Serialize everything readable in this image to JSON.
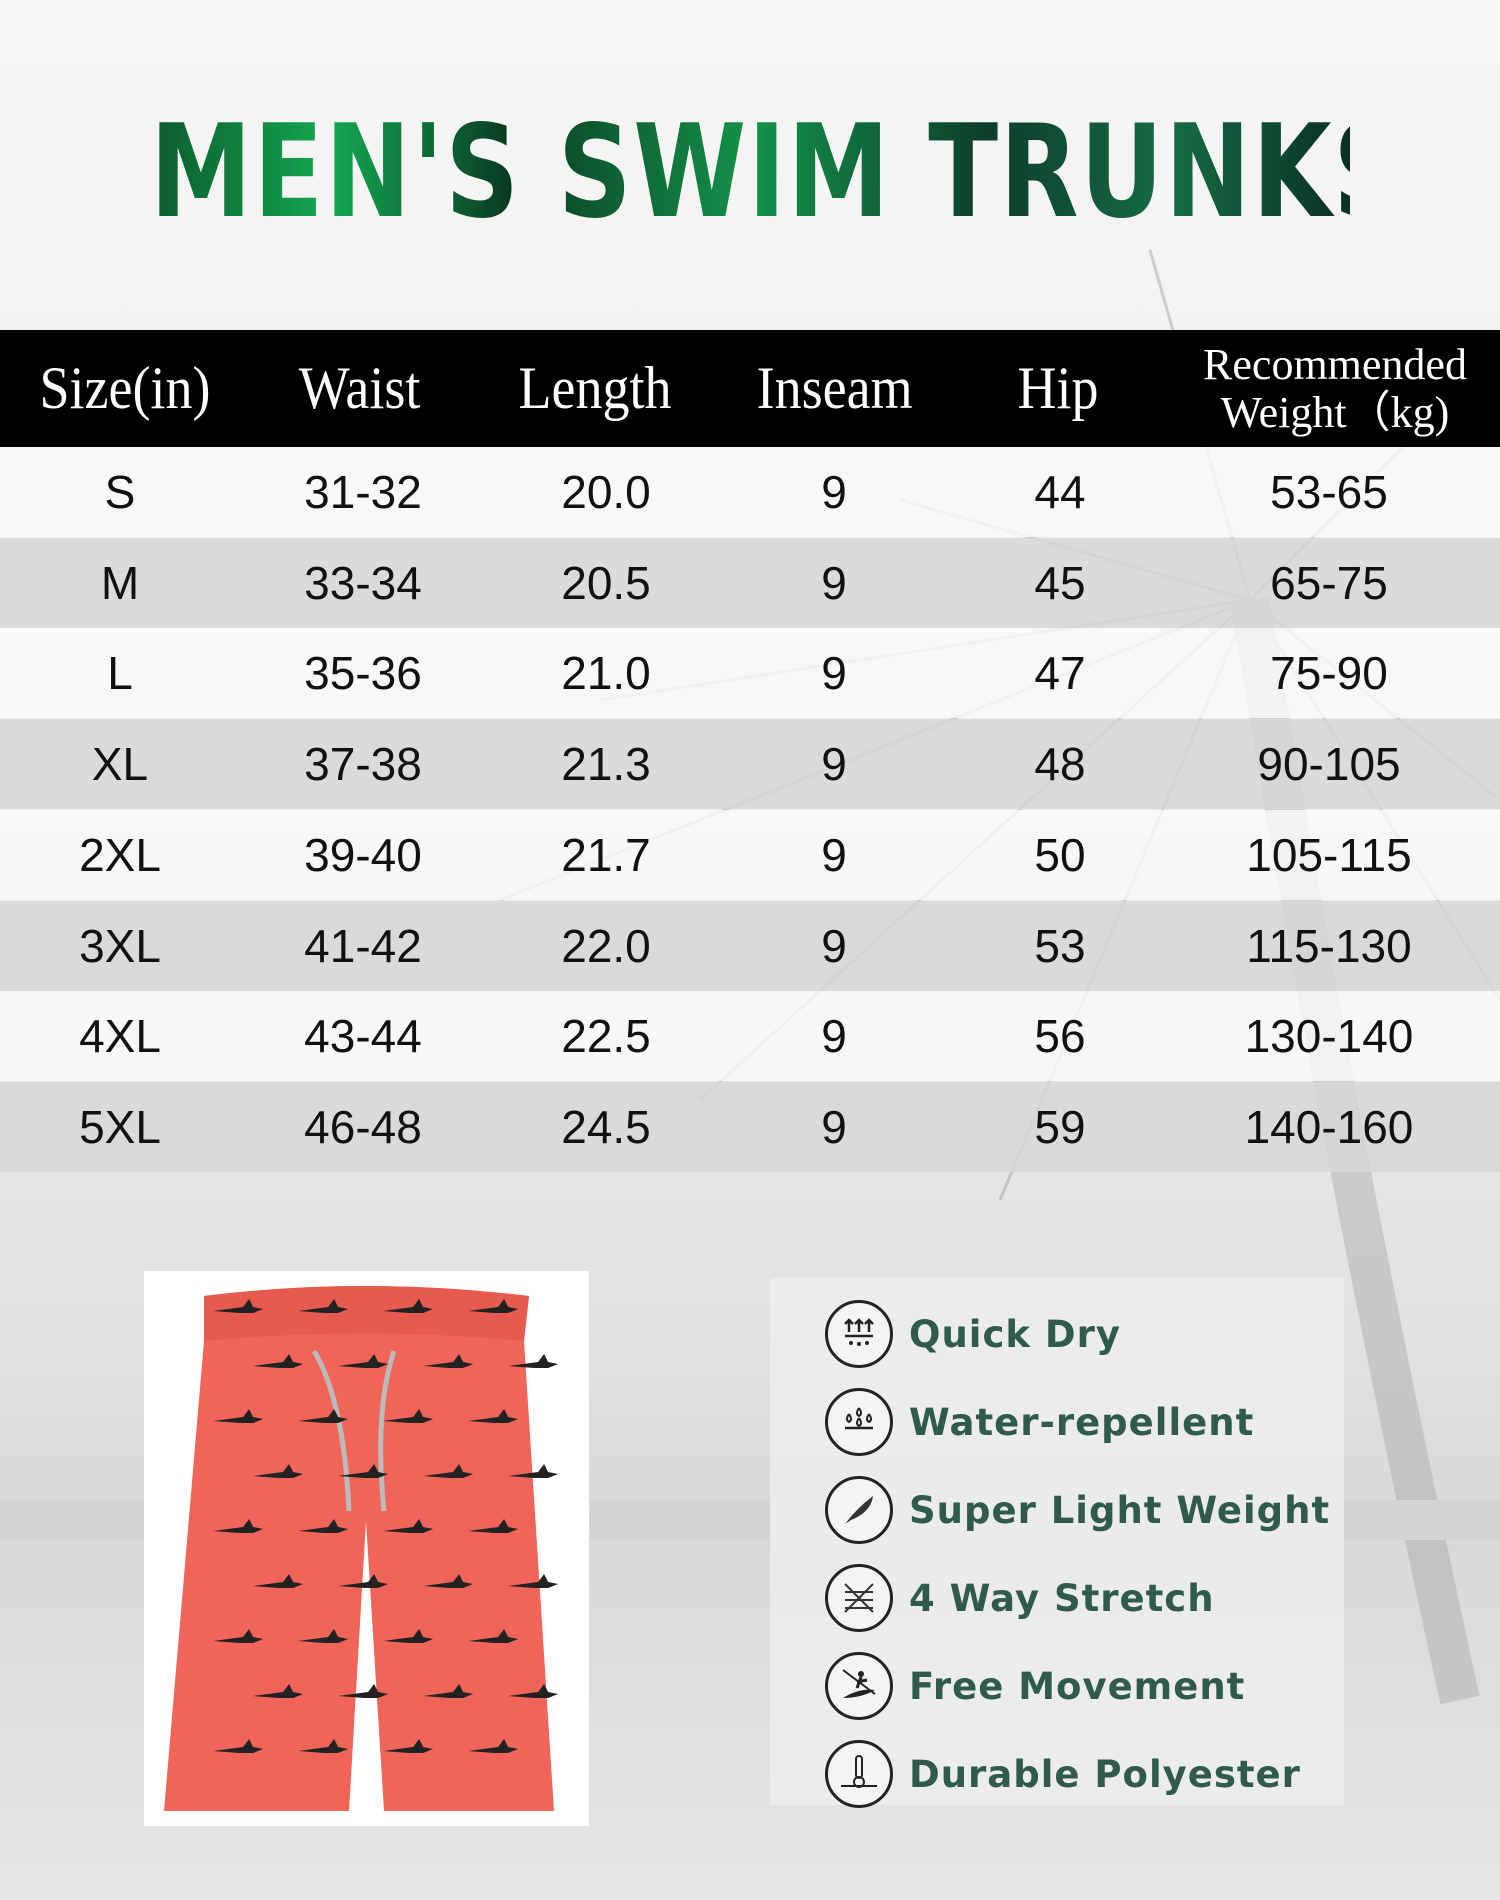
{
  "title": "MEN'S SWIM TRUNKS",
  "table": {
    "headers": [
      "Size(in)",
      "Waist",
      "Length",
      "Inseam",
      "Hip",
      "Recommended",
      "Weight（kg)"
    ],
    "rows": [
      [
        "S",
        "31-32",
        "20.0",
        "9",
        "44",
        "53-65"
      ],
      [
        "M",
        "33-34",
        "20.5",
        "9",
        "45",
        "65-75"
      ],
      [
        "L",
        "35-36",
        "21.0",
        "9",
        "47",
        "75-90"
      ],
      [
        "XL",
        "37-38",
        "21.3",
        "9",
        "48",
        "90-105"
      ],
      [
        "2XL",
        "39-40",
        "21.7",
        "9",
        "50",
        "105-115"
      ],
      [
        "3XL",
        "41-42",
        "22.0",
        "9",
        "53",
        "115-130"
      ],
      [
        "4XL",
        "43-44",
        "22.5",
        "9",
        "56",
        "130-140"
      ],
      [
        "5XL",
        "46-48",
        "24.5",
        "9",
        "59",
        "140-160"
      ]
    ]
  },
  "features": [
    {
      "label": "Quick Dry",
      "icon": "quick-dry-icon"
    },
    {
      "label": "Water-repellent",
      "icon": "water-drops-icon"
    },
    {
      "label": "Super Light Weight",
      "icon": "feather-icon"
    },
    {
      "label": "4 Way Stretch",
      "icon": "stretch-mesh-icon"
    },
    {
      "label": "Free Movement",
      "icon": "surfer-icon"
    },
    {
      "label": "Durable Polyester",
      "icon": "thermometer-icon"
    }
  ],
  "colors": {
    "title_green": "#13a852",
    "feature_text": "#2f5a4c",
    "shorts": "#f0645a"
  }
}
